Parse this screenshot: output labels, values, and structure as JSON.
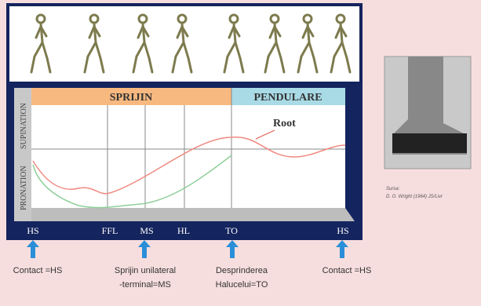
{
  "chart": {
    "y_labels": [
      "SUPINATION",
      "PRONATION"
    ],
    "phases": [
      "SPRIJIN",
      "PENDULARE"
    ],
    "annotation": "Root",
    "events": [
      "HS",
      "FFL",
      "MS",
      "HL",
      "TO",
      "HS"
    ]
  },
  "captions": [
    [
      "Contact =HS"
    ],
    [
      "Sprijin unilateral",
      "-terminal=MS"
    ],
    [
      "Desprinderea",
      "Halucelui=TO"
    ],
    [
      "Contact =HS"
    ]
  ],
  "source": {
    "label": "Sursa:",
    "text": "D. O. Wright (1964) JS/Livr"
  }
}
